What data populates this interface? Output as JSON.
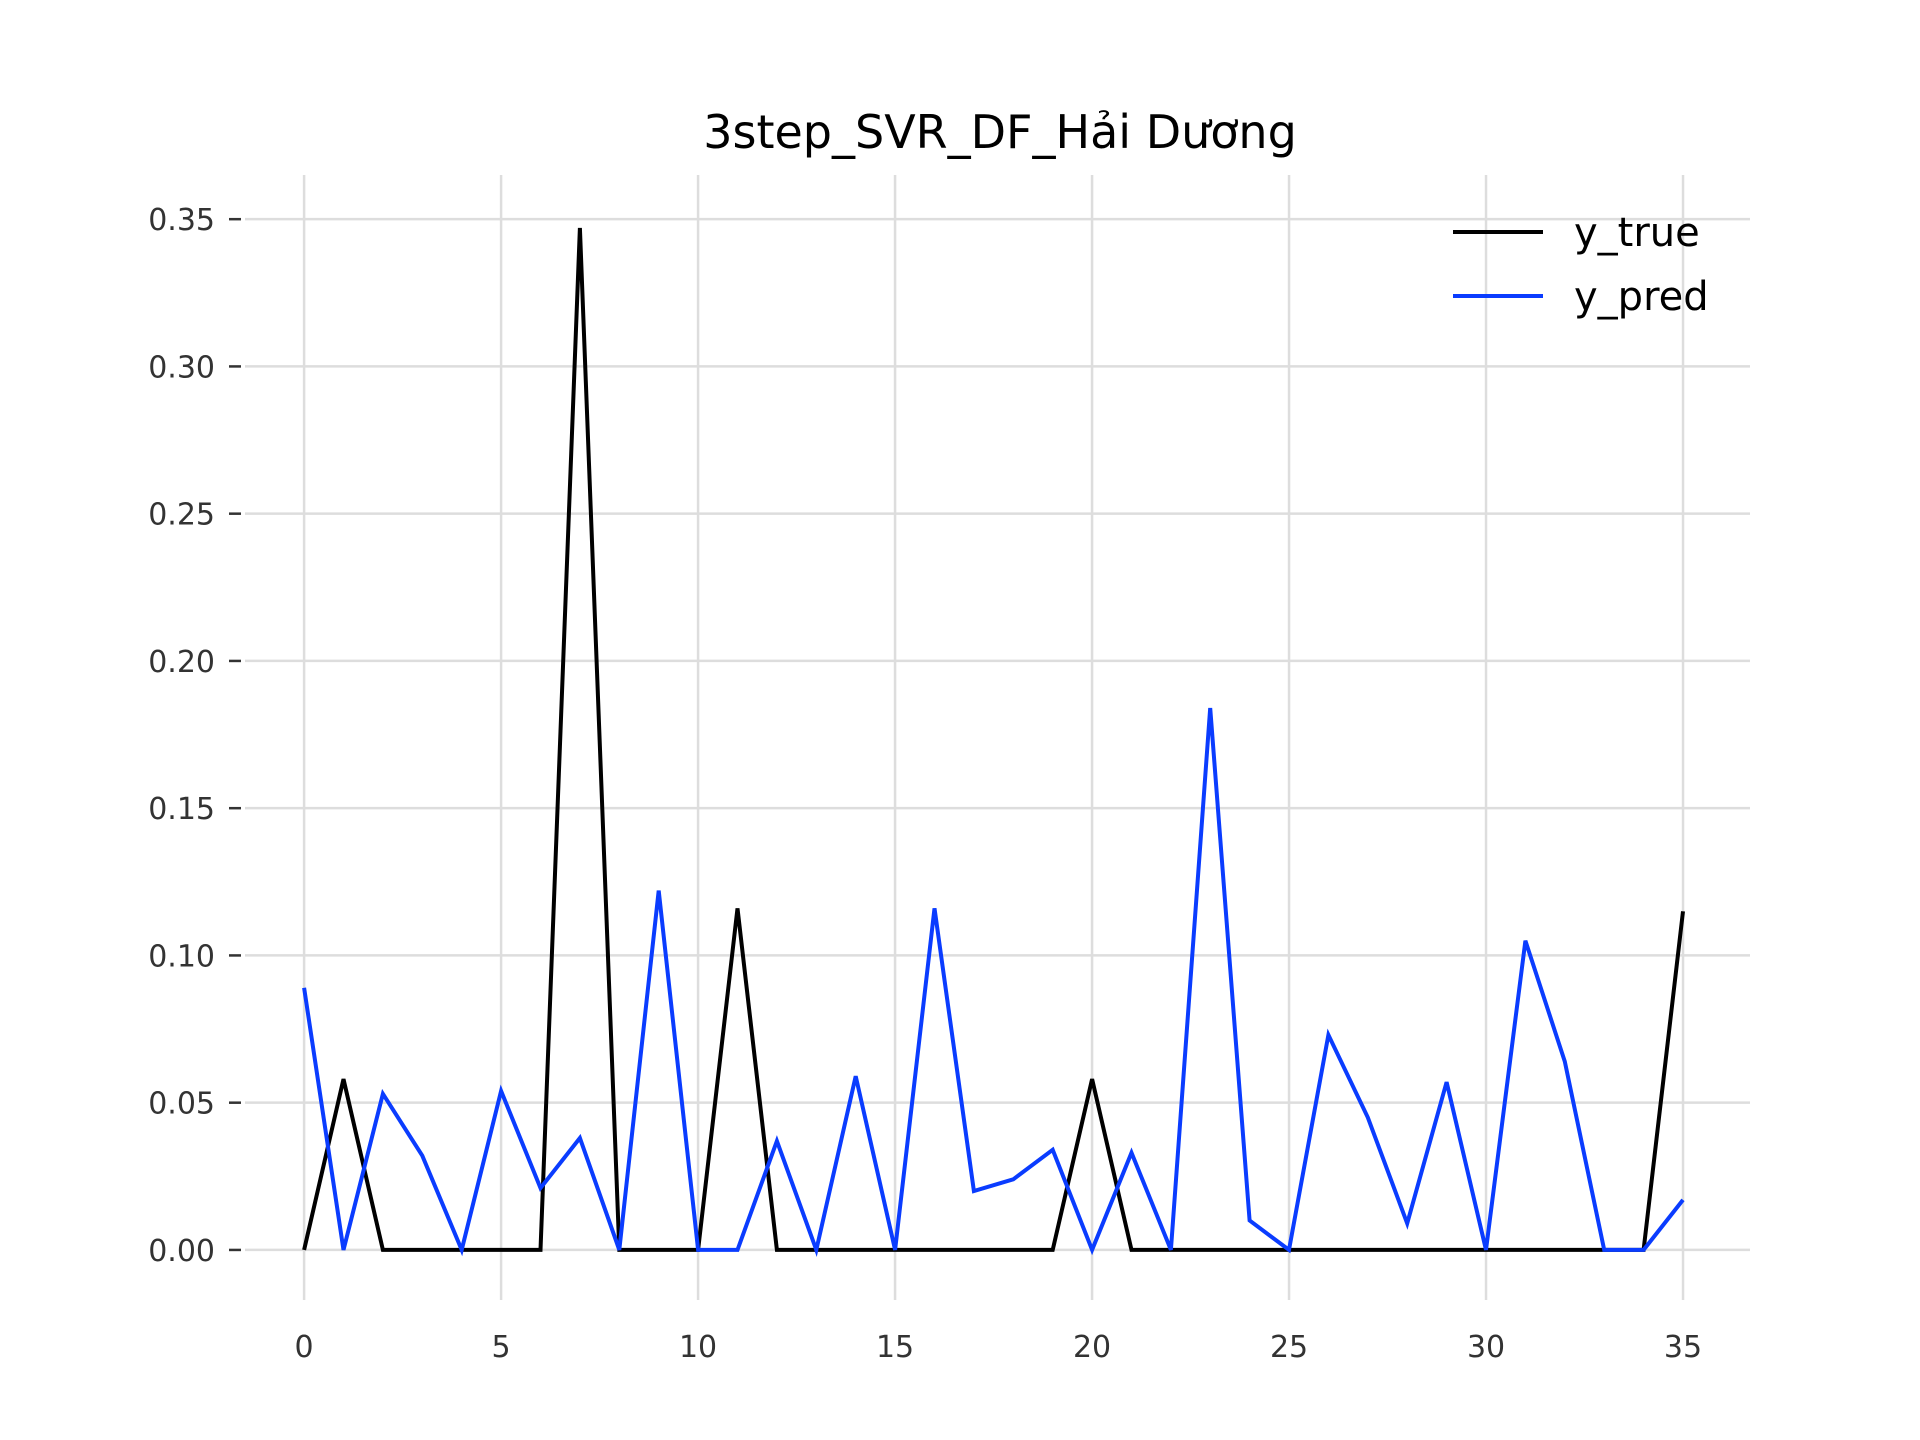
{
  "chart_data": {
    "type": "line",
    "title": "3step_SVR_DF_Hải Dương",
    "xlabel": "",
    "ylabel": "",
    "x": [
      0,
      1,
      2,
      3,
      4,
      5,
      6,
      7,
      8,
      9,
      10,
      11,
      12,
      13,
      14,
      15,
      16,
      17,
      18,
      19,
      20,
      21,
      22,
      23,
      24,
      25,
      26,
      27,
      28,
      29,
      30,
      31,
      32,
      33,
      34,
      35
    ],
    "xlim": [
      -1.5,
      36.7
    ],
    "ylim": [
      -0.017,
      0.365
    ],
    "xticks": [
      0,
      5,
      10,
      15,
      20,
      25,
      30,
      35
    ],
    "xtick_labels": [
      "0",
      "5",
      "10",
      "15",
      "20",
      "25",
      "30",
      "35"
    ],
    "yticks": [
      0.0,
      0.05,
      0.1,
      0.15,
      0.2,
      0.25,
      0.3,
      0.35
    ],
    "ytick_labels": [
      "0.00",
      "0.05",
      "0.10",
      "0.15",
      "0.20",
      "0.25",
      "0.30",
      "0.35"
    ],
    "grid": true,
    "legend_position": "top-right",
    "series": [
      {
        "name": "y_true",
        "color": "#000000",
        "values": [
          0,
          0.058,
          0,
          0,
          0,
          0,
          0,
          0.347,
          0,
          0,
          0,
          0.116,
          0,
          0,
          0,
          0,
          0,
          0,
          0,
          0,
          0.058,
          0,
          0,
          0,
          0,
          0,
          0,
          0,
          0,
          0,
          0,
          0,
          0,
          0,
          0,
          0.115
        ]
      },
      {
        "name": "y_pred",
        "color": "#0a3cff",
        "values": [
          0.089,
          0.0,
          0.053,
          0.032,
          0.0,
          0.054,
          0.021,
          0.038,
          0.0,
          0.122,
          0.0,
          0.0,
          0.037,
          0.0,
          0.059,
          0.0,
          0.116,
          0.02,
          0.024,
          0.034,
          0.0,
          0.033,
          0.0,
          0.184,
          0.01,
          0.0,
          0.073,
          0.045,
          0.009,
          0.057,
          0.0,
          0.105,
          0.064,
          0.0,
          0.0,
          0.017
        ]
      }
    ]
  }
}
